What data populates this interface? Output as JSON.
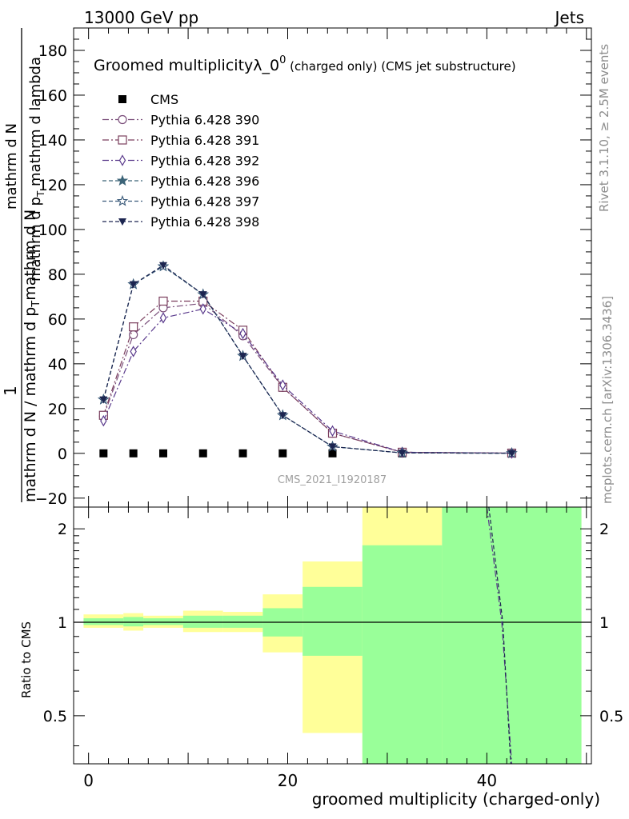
{
  "header": {
    "left": "13000 GeV pp",
    "right": "Jets"
  },
  "side": {
    "rivet": "Rivet 3.1.10, ≥ 2.5M events",
    "mcplots": "mcplots.cern.ch [arXiv:1306.3436]"
  },
  "chart_data": [
    {
      "type": "scatter",
      "title_main": "Groomed multiplicityλ_0",
      "title_sup": "0",
      "title_rest": " (charged only) (CMS jet substructure)",
      "ylabel_top": "1",
      "ylabel_mid": "mathrm d N / mathrm d p",
      "ylabel_mid_sub": "T",
      "ylabel_mid_rest": "mathrm d N",
      "ylabel_num_a": "mathrm d",
      "ylabel_num_b": "N",
      "ylabel_den": "mathrm d p",
      "ylabel_den_sub": "T",
      "ylabel_den_rest": " mathrm d lambda",
      "watermark": "CMS_2021_I1920187",
      "xlim": [
        -1.5,
        50.5
      ],
      "ylim": [
        -24,
        190
      ],
      "yticks": [
        -20,
        0,
        20,
        40,
        60,
        80,
        100,
        120,
        140,
        160,
        180
      ],
      "x": [
        1.5,
        4.5,
        7.5,
        11.5,
        15.5,
        19.5,
        24.5,
        31.5,
        42.5
      ],
      "series": [
        {
          "name": "CMS",
          "marker": "square-filled",
          "color": "#000000",
          "dash": "",
          "values": [
            0,
            0,
            0,
            0,
            0,
            0,
            0,
            0,
            0
          ]
        },
        {
          "name": "Pythia 6.428 390",
          "marker": "circle-open",
          "color": "#7a4e7a",
          "dash": "8,3,2,3",
          "values": [
            16.5,
            53,
            65,
            67,
            52.5,
            29.5,
            9,
            0.5,
            0.1
          ]
        },
        {
          "name": "Pythia 6.428 391",
          "marker": "square-open",
          "color": "#7b3f5e",
          "dash": "8,3,2,3",
          "values": [
            17,
            56.5,
            68,
            68,
            55,
            29.5,
            9,
            0.5,
            0.1
          ]
        },
        {
          "name": "Pythia 6.428 392",
          "marker": "diamond-open",
          "color": "#5a3a8c",
          "dash": "8,3,2,3",
          "values": [
            14.5,
            45.5,
            60.5,
            64.5,
            53.5,
            30.5,
            10,
            0.5,
            0.1
          ]
        },
        {
          "name": "Pythia 6.428 396",
          "marker": "star-filled",
          "color": "#3c6478",
          "dash": "5,3",
          "values": [
            24,
            75.5,
            83.5,
            71,
            43.5,
            17,
            3,
            0.2,
            0.05
          ]
        },
        {
          "name": "Pythia 6.428 397",
          "marker": "star-open",
          "color": "#3a5a7a",
          "dash": "5,3",
          "values": [
            24,
            75.5,
            83.5,
            71,
            43.5,
            17,
            3,
            0.2,
            0.05
          ]
        },
        {
          "name": "Pythia 6.428 398",
          "marker": "triangle-down-filled",
          "color": "#1c2550",
          "dash": "5,3",
          "values": [
            24,
            75.5,
            84,
            71,
            43.5,
            17,
            3,
            0.2,
            0.05
          ]
        }
      ]
    },
    {
      "type": "area",
      "ylabel": "Ratio to CMS",
      "xlabel": "groomed multiplicity (charged-only)",
      "xlim": [
        -1.5,
        50.5
      ],
      "ylim": [
        0.35,
        2.35
      ],
      "xticks": [
        0,
        20,
        40
      ],
      "yticks": [
        0.5,
        1,
        2
      ],
      "bins": [
        {
          "lo": -0.5,
          "hi": 3.5,
          "green": [
            0.98,
            1.03
          ],
          "yellow": [
            0.96,
            1.06
          ]
        },
        {
          "lo": 3.5,
          "hi": 5.5,
          "green": [
            0.97,
            1.04
          ],
          "yellow": [
            0.94,
            1.07
          ]
        },
        {
          "lo": 5.5,
          "hi": 9.5,
          "green": [
            0.98,
            1.03
          ],
          "yellow": [
            0.96,
            1.05
          ]
        },
        {
          "lo": 9.5,
          "hi": 13.5,
          "green": [
            0.96,
            1.05
          ],
          "yellow": [
            0.93,
            1.09
          ]
        },
        {
          "lo": 13.5,
          "hi": 17.5,
          "green": [
            0.96,
            1.05
          ],
          "yellow": [
            0.93,
            1.08
          ]
        },
        {
          "lo": 17.5,
          "hi": 21.5,
          "green": [
            0.9,
            1.11
          ],
          "yellow": [
            0.8,
            1.23
          ]
        },
        {
          "lo": 21.5,
          "hi": 27.5,
          "green": [
            0.78,
            1.3
          ],
          "yellow": [
            0.44,
            1.57
          ]
        },
        {
          "lo": 27.5,
          "hi": 35.5,
          "green": [
            0.35,
            1.77
          ],
          "yellow": [
            0.35,
            2.35
          ]
        },
        {
          "lo": 35.5,
          "hi": 49.5,
          "green": [
            0.35,
            2.35
          ],
          "yellow": [
            0.35,
            2.35
          ]
        }
      ],
      "lines": [
        {
          "name": "Pythia 6.428 39x",
          "color": "#5a3a8c",
          "dash": "8,3,2,3",
          "points": [
            [
              40,
              2.35
            ],
            [
              41.5,
              1
            ],
            [
              42.5,
              0.35
            ]
          ]
        },
        {
          "name": "Pythia 6.428 39x",
          "color": "#1c2550",
          "dash": "5,3",
          "points": [
            [
              40.2,
              2.35
            ],
            [
              41.6,
              1
            ],
            [
              42.4,
              0.35
            ]
          ]
        }
      ]
    }
  ],
  "colors": {
    "green": "#99ff99",
    "yellow": "#ffff99"
  }
}
